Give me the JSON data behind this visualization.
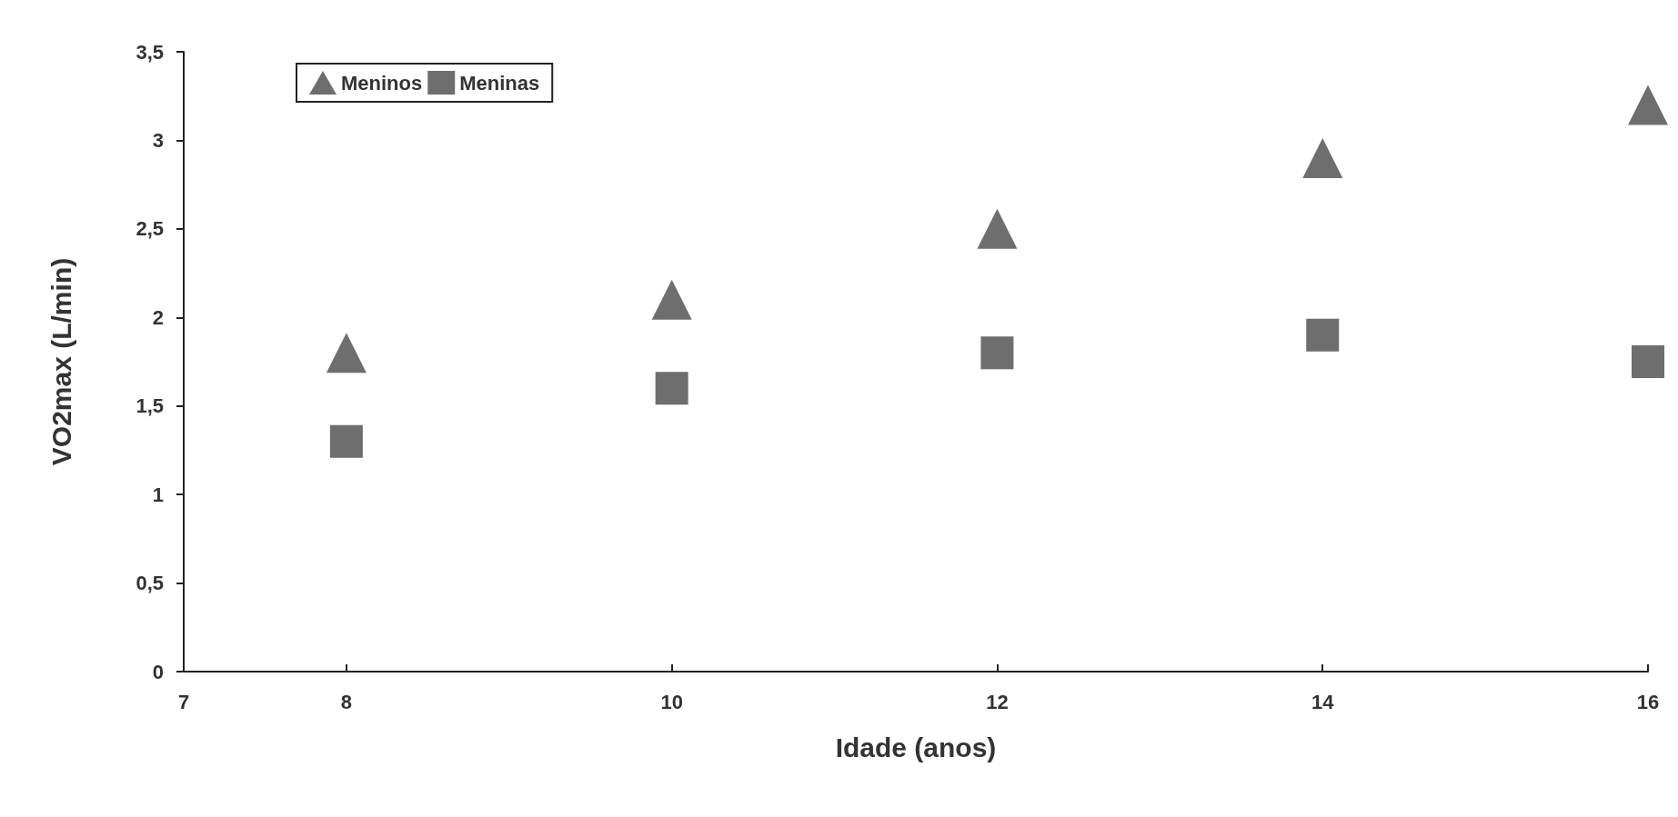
{
  "chart_data": {
    "type": "scatter",
    "xlabel": "Idade (anos)",
    "ylabel": "VO2max (L/min)",
    "xlim": [
      7,
      16
    ],
    "xticks": [
      7,
      8,
      10,
      12,
      14,
      16
    ],
    "ylim": [
      0,
      3.5
    ],
    "yticks": [
      {
        "value": 0,
        "label": "0"
      },
      {
        "value": 0.5,
        "label": "0,5"
      },
      {
        "value": 1,
        "label": "1"
      },
      {
        "value": 1.5,
        "label": "1,5"
      },
      {
        "value": 2,
        "label": "2"
      },
      {
        "value": 2.5,
        "label": "2,5"
      },
      {
        "value": 3,
        "label": "3"
      },
      {
        "value": 3.5,
        "label": "3,5"
      }
    ],
    "x": [
      8,
      10,
      12,
      14,
      16
    ],
    "series": [
      {
        "name": "Meninos",
        "color": "#4a4a4a",
        "marker": "triangle",
        "values": [
          1.8,
          2.1,
          2.5,
          2.9,
          3.2
        ]
      },
      {
        "name": "Meninas",
        "color": "#4a4a4a",
        "marker": "square",
        "values": [
          1.3,
          1.6,
          1.8,
          1.9,
          1.75
        ]
      }
    ],
    "grid": false,
    "legend": "top left"
  }
}
